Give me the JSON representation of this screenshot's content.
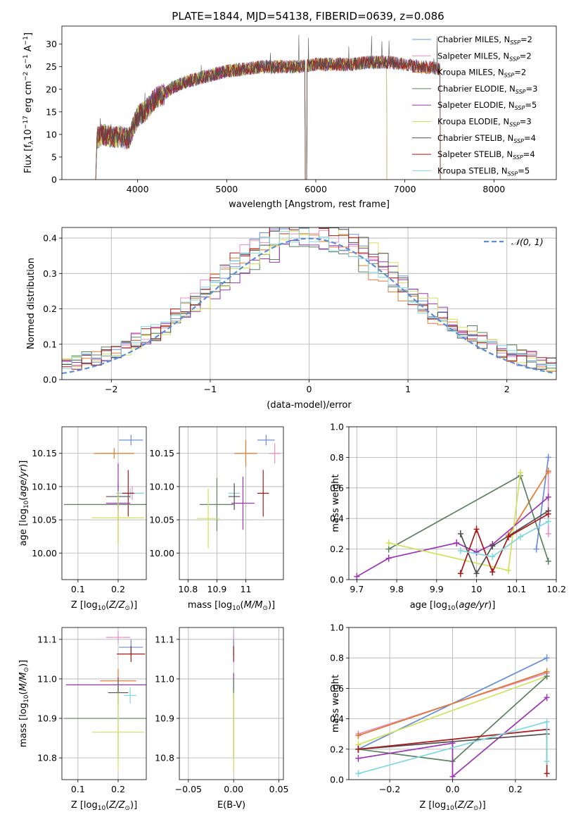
{
  "figure": {
    "title": "PLATE=1844, MJD=54138, FIBERID=0639, z=0.086"
  },
  "colors": {
    "Chabrier MILES": "#6a8fd8",
    "Salpeter MILES": "#e68fc3",
    "Kroupa MILES": "#e07a2e",
    "Chabrier ELODIE": "#5b8060",
    "Salpeter ELODIE": "#9a35b3",
    "Kroupa ELODIE": "#cfe35a",
    "Chabrier STELIB": "#505050",
    "Salpeter STELIB": "#a81818",
    "Kroupa STELIB": "#7ed8e0",
    "normal_curve": "#5b8dd8",
    "grid": "#b0b0b0"
  },
  "chart_data": [
    {
      "id": "spectrum",
      "type": "line",
      "xlabel": "wavelength [Angstrom, rest frame]",
      "ylabel": "Flux [fλ10⁻¹⁷ erg cm⁻² s⁻¹ A⁻¹]",
      "xlim": [
        3150,
        8700
      ],
      "ylim": [
        0,
        34
      ],
      "xticks": [
        4000,
        5000,
        6000,
        7000,
        8000
      ],
      "yticks": [
        0,
        5,
        10,
        15,
        20,
        25,
        30
      ],
      "grid": false,
      "legend_position": "top-right",
      "legend": [
        {
          "label": "Chabrier MILES, N",
          "sub": "SSP",
          "suffix": "=2",
          "model": "Chabrier MILES"
        },
        {
          "label": "Salpeter MILES, N",
          "sub": "SSP",
          "suffix": "=2",
          "model": "Salpeter MILES"
        },
        {
          "label": "Kroupa MILES, N",
          "sub": "SSP",
          "suffix": "=2",
          "model": "Kroupa MILES"
        },
        {
          "label": "Chabrier ELODIE, N",
          "sub": "SSP",
          "suffix": "=3",
          "model": "Chabrier ELODIE"
        },
        {
          "label": "Salpeter ELODIE, N",
          "sub": "SSP",
          "suffix": "=5",
          "model": "Salpeter ELODIE"
        },
        {
          "label": "Kroupa ELODIE, N",
          "sub": "SSP",
          "suffix": "=3",
          "model": "Kroupa ELODIE"
        },
        {
          "label": "Chabrier STELIB, N",
          "sub": "SSP",
          "suffix": "=4",
          "model": "Chabrier STELIB"
        },
        {
          "label": "Salpeter STELIB, N",
          "sub": "SSP",
          "suffix": "=4",
          "model": "Salpeter STELIB"
        },
        {
          "label": "Kroupa STELIB, N",
          "sub": "SSP",
          "suffix": "=5",
          "model": "Kroupa STELIB"
        }
      ],
      "continuum_x": [
        3530,
        3600,
        3700,
        3800,
        3900,
        4000,
        4100,
        4200,
        4300,
        4400,
        4600,
        4800,
        5000,
        5200,
        5400,
        5600,
        5800,
        6000,
        6200,
        6400,
        6600,
        6800,
        7000,
        7200,
        7400
      ],
      "continuum_y": [
        9,
        10,
        9.5,
        9.5,
        9,
        14,
        15.5,
        18,
        19,
        20.5,
        22,
        23,
        24,
        24.5,
        25,
        25,
        25,
        25.5,
        25.5,
        25.5,
        26,
        26,
        25.5,
        25,
        24.5
      ]
    },
    {
      "id": "residual-hist",
      "type": "histogram",
      "xlabel": "(data-model)/error",
      "ylabel": "Normed distribution",
      "xlim": [
        -2.5,
        2.5
      ],
      "ylim": [
        0,
        0.43
      ],
      "xticks": [
        -2,
        -1,
        0,
        1,
        2
      ],
      "yticks": [
        0.0,
        0.1,
        0.2,
        0.3,
        0.4
      ],
      "grid": true,
      "legend_position": "top-right",
      "legend": "𝒩(0, 1)",
      "bin_width": 0.1
    },
    {
      "id": "age-vs-Z",
      "type": "scatter",
      "xlabel": "Z [log10(Z/Z⊙)]",
      "ylabel": "age  [log10(age/yr)]",
      "xlim": [
        0.06,
        0.27
      ],
      "ylim": [
        9.96,
        10.19
      ],
      "xticks": [
        0.1,
        0.2
      ],
      "yticks": [
        10.0,
        10.05,
        10.1,
        10.15
      ],
      "grid": true,
      "points": [
        {
          "model": "Chabrier MILES",
          "x": 0.232,
          "y": 10.17,
          "xerr": 0.03,
          "yerr": 0.008
        },
        {
          "model": "Kroupa MILES",
          "x": 0.19,
          "y": 10.15,
          "xerr": 0.05,
          "yerr": 0.008
        },
        {
          "model": "Salpeter MILES",
          "x": 0.235,
          "y": 10.09,
          "xerr": 0.025,
          "yerr": 0.01
        },
        {
          "model": "Kroupa STELIB",
          "x": 0.23,
          "y": 10.09,
          "xerr": 0.035,
          "yerr": 0.008
        },
        {
          "model": "Salpeter STELIB",
          "x": 0.225,
          "y": 10.09,
          "xerr": 0.015,
          "yerr": 0.035
        },
        {
          "model": "Chabrier STELIB",
          "x": 0.2,
          "y": 10.085,
          "xerr": 0.03,
          "yerr": 0.02
        },
        {
          "model": "Salpeter ELODIE",
          "x": 0.2,
          "y": 10.075,
          "xerr": 0.03,
          "yerr": 0.06
        },
        {
          "model": "Chabrier ELODIE",
          "x": 0.2,
          "y": 10.073,
          "xerr": 0.135,
          "yerr": 0.02
        },
        {
          "model": "Kroupa ELODIE",
          "x": 0.2,
          "y": 10.053,
          "xerr": 0.065,
          "yerr": 0.04
        }
      ]
    },
    {
      "id": "age-vs-mass",
      "type": "scatter",
      "xlabel": "mass [log10(M/M⊙)]",
      "ylabel": "",
      "xlim": [
        10.77,
        11.13
      ],
      "ylim": [
        9.96,
        10.19
      ],
      "xticks": [
        10.8,
        10.9,
        11.0
      ],
      "yticks": [
        10.0,
        10.05,
        10.1,
        10.15
      ],
      "grid": true,
      "points": [
        {
          "model": "Chabrier MILES",
          "x": 11.07,
          "y": 10.17,
          "xerr": 0.03,
          "yerr": 0.008
        },
        {
          "model": "Salpeter MILES",
          "x": 11.1,
          "y": 10.15,
          "xerr": 0.02,
          "yerr": 0.015
        },
        {
          "model": "Kroupa MILES",
          "x": 11.0,
          "y": 10.15,
          "xerr": 0.04,
          "yerr": 0.02
        },
        {
          "model": "Kroupa STELIB",
          "x": 10.96,
          "y": 10.09,
          "xerr": 0.02,
          "yerr": 0.01
        },
        {
          "model": "Salpeter STELIB",
          "x": 11.06,
          "y": 10.09,
          "xerr": 0.02,
          "yerr": 0.035
        },
        {
          "model": "Chabrier STELIB",
          "x": 10.96,
          "y": 10.085,
          "xerr": 0.02,
          "yerr": 0.02
        },
        {
          "model": "Salpeter ELODIE",
          "x": 10.99,
          "y": 10.075,
          "xerr": 0.04,
          "yerr": 0.04
        },
        {
          "model": "Chabrier ELODIE",
          "x": 10.9,
          "y": 10.073,
          "xerr": 0.06,
          "yerr": 0.04
        },
        {
          "model": "Kroupa ELODIE",
          "x": 10.87,
          "y": 10.052,
          "xerr": 0.04,
          "yerr": 0.045
        }
      ]
    },
    {
      "id": "weight-vs-age",
      "type": "line",
      "xlabel": "age  [log10(age/yr)]",
      "ylabel": "mass weight",
      "xlim": [
        9.68,
        10.2
      ],
      "ylim": [
        0,
        1.0
      ],
      "xticks": [
        9.7,
        9.8,
        9.9,
        10.0,
        10.1,
        10.2
      ],
      "yticks": [
        0.0,
        0.2,
        0.4,
        0.6,
        0.8,
        1.0
      ],
      "grid": true,
      "series": [
        {
          "model": "Chabrier MILES",
          "x": [
            10.15,
            10.18
          ],
          "y": [
            0.2,
            0.8
          ]
        },
        {
          "model": "Salpeter MILES",
          "x": [
            10.18,
            10.18
          ],
          "y": [
            0.3,
            0.7
          ]
        },
        {
          "model": "Kroupa MILES",
          "x": [
            10.08,
            10.18
          ],
          "y": [
            0.29,
            0.71
          ]
        },
        {
          "model": "Chabrier ELODIE",
          "x": [
            9.78,
            10.11,
            10.18
          ],
          "y": [
            0.2,
            0.68,
            0.12
          ]
        },
        {
          "model": "Salpeter ELODIE",
          "x": [
            9.7,
            9.78,
            9.95,
            10.0,
            10.04,
            10.18
          ],
          "y": [
            0.02,
            0.14,
            0.24,
            0.18,
            0.23,
            0.54
          ]
        },
        {
          "model": "Kroupa ELODIE",
          "x": [
            9.78,
            10.08,
            10.11
          ],
          "y": [
            0.24,
            0.06,
            0.7
          ]
        },
        {
          "model": "Chabrier STELIB",
          "x": [
            9.96,
            10.0,
            10.04,
            10.18
          ],
          "y": [
            0.3,
            0.04,
            0.22,
            0.45
          ]
        },
        {
          "model": "Salpeter STELIB",
          "x": [
            9.96,
            10.0,
            10.04,
            10.08,
            10.18
          ],
          "y": [
            0.04,
            0.33,
            0.05,
            0.28,
            0.43
          ]
        },
        {
          "model": "Kroupa STELIB",
          "x": [
            9.96,
            10.04,
            10.11,
            10.18
          ],
          "y": [
            0.19,
            0.15,
            0.28,
            0.38
          ]
        }
      ]
    },
    {
      "id": "mass-vs-Z",
      "type": "scatter",
      "xlabel": "Z [log10(Z/Z⊙)]",
      "ylabel": "mass [log10(M/M⊙)]",
      "xlim": [
        0.06,
        0.27
      ],
      "ylim": [
        10.745,
        11.13
      ],
      "xticks": [
        0.1,
        0.2
      ],
      "yticks": [
        10.8,
        10.9,
        11.0,
        11.1
      ],
      "grid": true,
      "points": [
        {
          "model": "Salpeter MILES",
          "x": 0.2,
          "y": 11.105,
          "xerr": 0.03,
          "yerr": 0.015
        },
        {
          "model": "Chabrier MILES",
          "x": 0.232,
          "y": 11.08,
          "xerr": 0.03,
          "yerr": 0.02
        },
        {
          "model": "Salpeter STELIB",
          "x": 0.232,
          "y": 11.063,
          "xerr": 0.035,
          "yerr": 0.02
        },
        {
          "model": "Kroupa MILES",
          "x": 0.2,
          "y": 10.995,
          "xerr": 0.045,
          "yerr": 0.03
        },
        {
          "model": "Salpeter ELODIE",
          "x": 0.2,
          "y": 10.985,
          "xerr": 0.13,
          "yerr": 0.02
        },
        {
          "model": "Chabrier STELIB",
          "x": 0.2,
          "y": 10.965,
          "xerr": 0.025,
          "yerr": 0.03
        },
        {
          "model": "Kroupa STELIB",
          "x": 0.23,
          "y": 10.958,
          "xerr": 0.015,
          "yerr": 0.02
        },
        {
          "model": "Chabrier ELODIE",
          "x": 0.2,
          "y": 10.9,
          "xerr": 0.135,
          "yerr": 0.1
        },
        {
          "model": "Kroupa ELODIE",
          "x": 0.2,
          "y": 10.865,
          "xerr": 0.065,
          "yerr": 0.1
        }
      ]
    },
    {
      "id": "mass-vs-ebv",
      "type": "scatter",
      "xlabel": "E(B-V)",
      "ylabel": "",
      "xlim": [
        -0.06,
        0.055
      ],
      "ylim": [
        10.745,
        11.13
      ],
      "xticks": [
        -0.05,
        0.0,
        0.05
      ],
      "xtick_labels": [
        "−0.05",
        "0.00",
        "0.05"
      ],
      "yticks": [
        10.8,
        10.9,
        11.0,
        11.1
      ],
      "grid": true,
      "points": [
        {
          "model": "Salpeter MILES",
          "x": 0.0,
          "y": 11.105,
          "xerr": 0.0,
          "yerr": 0.02
        },
        {
          "model": "Chabrier MILES",
          "x": 0.0,
          "y": 11.08,
          "xerr": 0.0,
          "yerr": 0.02
        },
        {
          "model": "Salpeter STELIB",
          "x": 0.0,
          "y": 11.063,
          "xerr": 0.0,
          "yerr": 0.02
        },
        {
          "model": "Salpeter ELODIE",
          "x": 0.0,
          "y": 10.985,
          "xerr": 0.0,
          "yerr": 0.03
        },
        {
          "model": "Kroupa STELIB",
          "x": 0.0,
          "y": 10.958,
          "xerr": 0.0,
          "yerr": 0.03
        },
        {
          "model": "Chabrier ELODIE",
          "x": 0.0,
          "y": 10.9,
          "xerr": 0.0,
          "yerr": 0.1
        },
        {
          "model": "Kroupa ELODIE",
          "x": 0.0,
          "y": 10.865,
          "xerr": 0.0,
          "yerr": 0.1
        }
      ]
    },
    {
      "id": "weight-vs-Z",
      "type": "line",
      "xlabel": "Z [log10(Z/Z⊙)]",
      "ylabel": "mass weight",
      "xlim": [
        -0.33,
        0.33
      ],
      "ylim": [
        0,
        1.0
      ],
      "xticks": [
        -0.2,
        0.0,
        0.2
      ],
      "xtick_labels": [
        "−0.2",
        "0.0",
        "0.2"
      ],
      "yticks": [
        0.0,
        0.2,
        0.4,
        0.6,
        0.8,
        1.0
      ],
      "grid": true,
      "series": [
        {
          "model": "Chabrier MILES",
          "x": [
            -0.3,
            0.3
          ],
          "y": [
            0.2,
            0.8
          ]
        },
        {
          "model": "Salpeter MILES",
          "x": [
            -0.3,
            0.3
          ],
          "y": [
            0.3,
            0.7
          ]
        },
        {
          "model": "Kroupa MILES",
          "x": [
            -0.3,
            0.3
          ],
          "y": [
            0.29,
            0.71
          ]
        },
        {
          "model": "Kroupa ELODIE",
          "x": [
            -0.3,
            0.3
          ],
          "y": [
            0.23,
            0.68
          ]
        },
        {
          "model": "Chabrier ELODIE",
          "x": [
            -0.3,
            0.0,
            0.3
          ],
          "y": [
            0.2,
            0.12,
            0.68
          ]
        },
        {
          "model": "Salpeter ELODIE",
          "x": [
            -0.3,
            0.0,
            0.0,
            0.3
          ],
          "y": [
            0.14,
            0.24,
            0.02,
            0.54
          ]
        },
        {
          "model": "Chabrier STELIB",
          "x": [
            -0.3,
            0.3
          ],
          "y": [
            0.2,
            0.3
          ]
        },
        {
          "model": "Salpeter STELIB",
          "x": [
            -0.3,
            0.3,
            0.3
          ],
          "y": [
            0.2,
            0.33,
            0.04
          ]
        },
        {
          "model": "Kroupa STELIB",
          "x": [
            -0.3,
            0.3,
            0.3
          ],
          "y": [
            0.04,
            0.38,
            0.12
          ]
        }
      ]
    }
  ]
}
